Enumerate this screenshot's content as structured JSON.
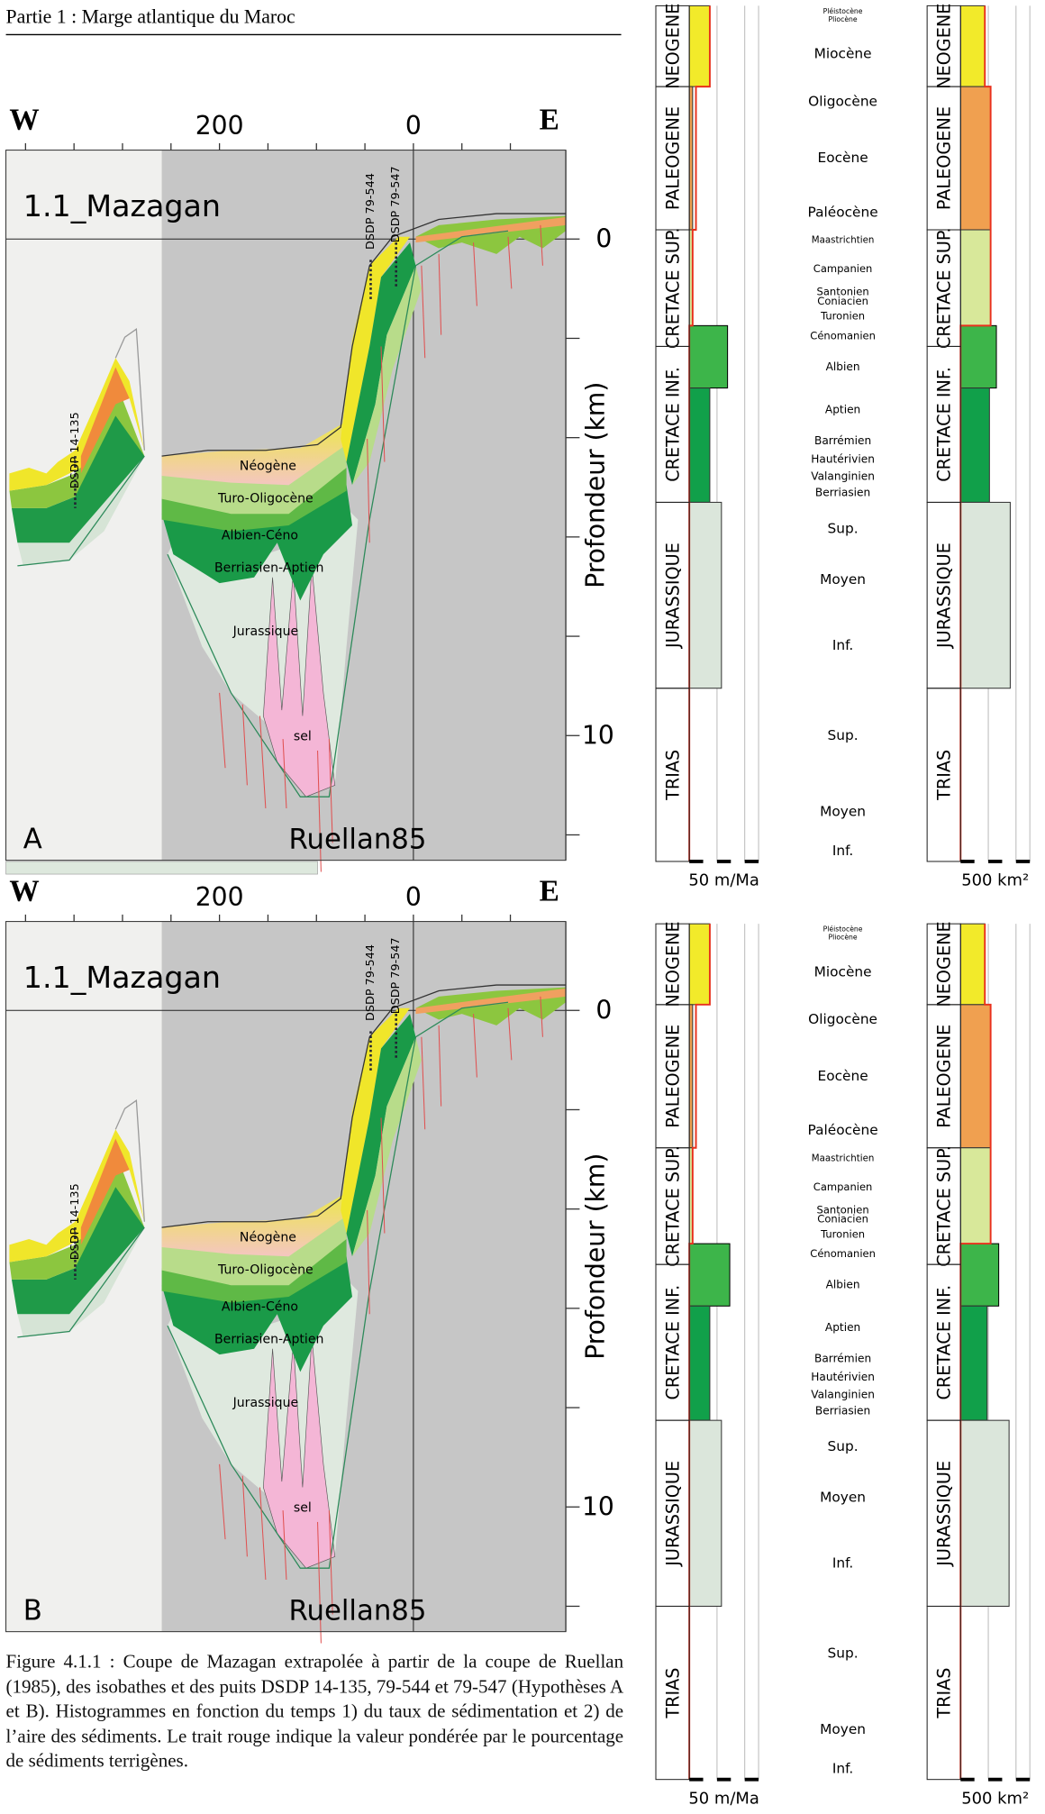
{
  "header": "Partie 1 : Marge atlantique du Maroc",
  "panels": [
    {
      "letter": "A",
      "title": "1.1_Mazagan",
      "source": "Ruellan85",
      "west": "W",
      "east": "E",
      "x_ticks": [
        "200",
        "0"
      ],
      "y_ticks": [
        "0",
        "10"
      ],
      "y_axis_label": "Profondeur (km)",
      "wells": [
        "DSDP 14-135",
        "DSDP 79-544",
        "DSDP 79-547"
      ],
      "units": [
        "Néogène",
        "Turo-Oligocène",
        "Albien-Céno",
        "Berriasien-Aptien",
        "Jurassique",
        "sel"
      ],
      "strat": {
        "periods": [
          "NEOGENE",
          "PALEOGENE",
          "CRETACE SUP.",
          "CRETACE INF.",
          "JURASSIQUE",
          "TRIAS"
        ],
        "epochs": [
          "Pléistocène",
          "Pliocène",
          "Miocène",
          "Oligocène",
          "Eocène",
          "Paléocène",
          "Maastrichtien",
          "Campanien",
          "Santonien",
          "Coniacien",
          "Turonien",
          "Cénomanien",
          "Albien",
          "Aptien",
          "Barrémien",
          "Hautérivien",
          "Valanginien",
          "Berriasien",
          "Sup.",
          "Moyen",
          "Inf.",
          "Sup.",
          "Moyen",
          "Inf."
        ],
        "colors": [
          "#f2ea2a",
          "#f0a050",
          "#d8e89a",
          "#3db54a",
          "#11a04a",
          "#dbe6db",
          "#ffffff"
        ],
        "rate": {
          "scale_label": "50 m/Ma",
          "scale": 50,
          "values": [
            37,
            6,
            6,
            69,
            37,
            58,
            0
          ],
          "weighted": [
            37,
            12,
            6,
            0,
            0,
            0,
            0
          ]
        },
        "area": {
          "scale_label": "500 km²",
          "scale": 500,
          "values": [
            438,
            542,
            542,
            646,
            521,
            896,
            0
          ],
          "weighted": [
            438,
            542,
            542,
            0,
            0,
            0,
            0
          ]
        }
      }
    },
    {
      "letter": "B",
      "title": "1.1_Mazagan",
      "source": "Ruellan85",
      "west": "W",
      "east": "E",
      "x_ticks": [
        "200",
        "0"
      ],
      "y_ticks": [
        "0",
        "10"
      ],
      "y_axis_label": "Profondeur (km)",
      "wells": [
        "DSDP 14-135",
        "DSDP 79-544",
        "DSDP 79-547"
      ],
      "units": [
        "Néogène",
        "Turo-Oligocène",
        "Albien-Céno",
        "Berriasien-Aptien",
        "Jurassique",
        "sel"
      ],
      "strat": {
        "periods": [
          "NEOGENE",
          "PALEOGENE",
          "CRETACE SUP.",
          "CRETACE INF.",
          "JURASSIQUE",
          "TRIAS"
        ],
        "epochs": [
          "Pléistocène",
          "Pliocène",
          "Miocène",
          "Oligocène",
          "Eocène",
          "Paléocène",
          "Maastrichtien",
          "Campanien",
          "Santonien",
          "Coniacien",
          "Turonien",
          "Cénomanien",
          "Albien",
          "Aptien",
          "Barrémien",
          "Hautérivien",
          "Valanginien",
          "Berriasien",
          "Sup.",
          "Moyen",
          "Inf.",
          "Sup.",
          "Moyen",
          "Inf."
        ],
        "colors": [
          "#f2ea2a",
          "#f0a050",
          "#d8e89a",
          "#3db54a",
          "#11a04a",
          "#dbe6db",
          "#ffffff"
        ],
        "rate": {
          "scale_label": "50 m/Ma",
          "scale": 50,
          "values": [
            37,
            6,
            6,
            73,
            37,
            58,
            0
          ],
          "weighted": [
            37,
            12,
            6,
            0,
            0,
            0,
            0
          ]
        },
        "area": {
          "scale_label": "500 km²",
          "scale": 500,
          "values": [
            438,
            542,
            542,
            688,
            479,
            875,
            0
          ],
          "weighted": [
            438,
            542,
            542,
            0,
            0,
            0,
            0
          ]
        }
      }
    }
  ],
  "caption": "Figure 4.1.1 : Coupe de Mazagan extrapolée à partir de la coupe de Ruellan (1985), des isobathes et des puits DSDP 14-135, 79-544 et 79-547 (Hypothèses A et B). Histogrammes en fonction du temps 1) du taux de sédimentation et 2) de l’aire des sédiments. Le trait rouge indique la valeur pondérée par le pourcentage de sédiments terrigènes."
}
